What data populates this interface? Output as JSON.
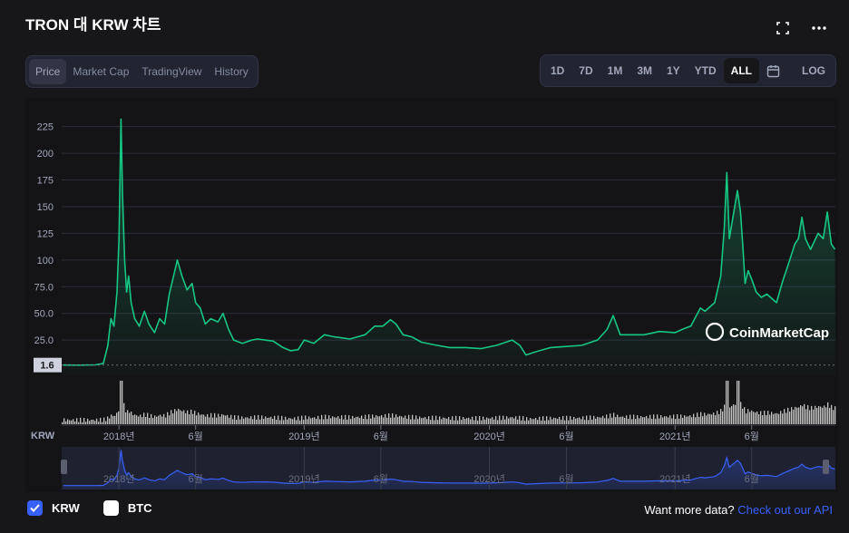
{
  "title": "TRON 대 KRW 차트",
  "icons": {
    "fullscreen": "fullscreen-icon",
    "more": "more-horizontal-icon",
    "calendar": "calendar-icon",
    "check": "check-icon"
  },
  "tabs": [
    {
      "label": "Price",
      "active": true
    },
    {
      "label": "Market Cap",
      "active": false
    },
    {
      "label": "TradingView",
      "active": false
    },
    {
      "label": "History",
      "active": false
    }
  ],
  "ranges": [
    {
      "label": "1D",
      "active": false
    },
    {
      "label": "7D",
      "active": false
    },
    {
      "label": "1M",
      "active": false
    },
    {
      "label": "3M",
      "active": false
    },
    {
      "label": "1Y",
      "active": false
    },
    {
      "label": "YTD",
      "active": false
    },
    {
      "label": "ALL",
      "active": true
    }
  ],
  "log_label": "LOG",
  "watermark": "CoinMarketCap",
  "currency_axis_label": "KRW",
  "legend": [
    {
      "label": "KRW",
      "checked": true
    },
    {
      "label": "BTC",
      "checked": false
    }
  ],
  "more_data": {
    "text": "Want more data? ",
    "link": "Check out our API"
  },
  "colors": {
    "line": "#16c784",
    "nav_line": "#3861fb",
    "background": "#17171a",
    "grid": "#2b2e3b",
    "volume": "#ffffff"
  },
  "chart_data": {
    "type": "area",
    "x_axis": "time",
    "x_range": [
      "2017-09",
      "2021-11"
    ],
    "y_ticks": [
      25.0,
      50.0,
      75.0,
      100,
      125,
      150,
      175,
      200,
      225
    ],
    "ylim": [
      -8,
      240
    ],
    "start_price_marker": "1.6",
    "x_ticks": [
      {
        "date": "2018-01",
        "label": "2018년"
      },
      {
        "date": "2018-06",
        "label": "6월"
      },
      {
        "date": "2019-01",
        "label": "2019년"
      },
      {
        "date": "2019-06",
        "label": "6월"
      },
      {
        "date": "2020-01",
        "label": "2020년"
      },
      {
        "date": "2020-06",
        "label": "6월"
      },
      {
        "date": "2021-01",
        "label": "2021년"
      },
      {
        "date": "2021-06",
        "label": "6월"
      }
    ],
    "points": [
      [
        "2017-09-13",
        1.6
      ],
      [
        "2017-10-15",
        1.5
      ],
      [
        "2017-11-15",
        1.8
      ],
      [
        "2017-12-01",
        3
      ],
      [
        "2017-12-10",
        20
      ],
      [
        "2017-12-16",
        45
      ],
      [
        "2017-12-22",
        38
      ],
      [
        "2017-12-28",
        70
      ],
      [
        "2018-01-01",
        120
      ],
      [
        "2018-01-05",
        232
      ],
      [
        "2018-01-08",
        160
      ],
      [
        "2018-01-12",
        100
      ],
      [
        "2018-01-16",
        70
      ],
      [
        "2018-01-20",
        85
      ],
      [
        "2018-01-25",
        60
      ],
      [
        "2018-02-01",
        45
      ],
      [
        "2018-02-10",
        38
      ],
      [
        "2018-02-20",
        52
      ],
      [
        "2018-03-01",
        40
      ],
      [
        "2018-03-12",
        32
      ],
      [
        "2018-03-22",
        45
      ],
      [
        "2018-04-01",
        40
      ],
      [
        "2018-04-10",
        68
      ],
      [
        "2018-04-20",
        88
      ],
      [
        "2018-04-26",
        100
      ],
      [
        "2018-05-05",
        85
      ],
      [
        "2018-05-15",
        72
      ],
      [
        "2018-05-25",
        78
      ],
      [
        "2018-06-01",
        60
      ],
      [
        "2018-06-10",
        55
      ],
      [
        "2018-06-20",
        40
      ],
      [
        "2018-07-01",
        45
      ],
      [
        "2018-07-15",
        42
      ],
      [
        "2018-07-25",
        50
      ],
      [
        "2018-08-05",
        35
      ],
      [
        "2018-08-15",
        25
      ],
      [
        "2018-09-01",
        22
      ],
      [
        "2018-09-20",
        25
      ],
      [
        "2018-10-01",
        26
      ],
      [
        "2018-11-01",
        24
      ],
      [
        "2018-11-20",
        18
      ],
      [
        "2018-12-05",
        15
      ],
      [
        "2018-12-20",
        16
      ],
      [
        "2019-01-01",
        25
      ],
      [
        "2019-01-20",
        22
      ],
      [
        "2019-02-10",
        30
      ],
      [
        "2019-03-01",
        28
      ],
      [
        "2019-04-01",
        26
      ],
      [
        "2019-05-01",
        30
      ],
      [
        "2019-05-20",
        38
      ],
      [
        "2019-06-05",
        38
      ],
      [
        "2019-06-20",
        44
      ],
      [
        "2019-07-01",
        40
      ],
      [
        "2019-07-15",
        30
      ],
      [
        "2019-08-01",
        28
      ],
      [
        "2019-08-20",
        23
      ],
      [
        "2019-09-20",
        20
      ],
      [
        "2019-10-15",
        18
      ],
      [
        "2019-11-15",
        18
      ],
      [
        "2019-12-15",
        17
      ],
      [
        "2020-01-15",
        20
      ],
      [
        "2020-02-15",
        25
      ],
      [
        "2020-03-01",
        20
      ],
      [
        "2020-03-13",
        11
      ],
      [
        "2020-04-01",
        14
      ],
      [
        "2020-05-01",
        18
      ],
      [
        "2020-06-01",
        19
      ],
      [
        "2020-07-01",
        20
      ],
      [
        "2020-08-01",
        25
      ],
      [
        "2020-08-20",
        35
      ],
      [
        "2020-09-01",
        48
      ],
      [
        "2020-09-15",
        30
      ],
      [
        "2020-10-01",
        30
      ],
      [
        "2020-11-01",
        30
      ],
      [
        "2020-12-01",
        33
      ],
      [
        "2021-01-01",
        32
      ],
      [
        "2021-01-20",
        36
      ],
      [
        "2021-02-01",
        38
      ],
      [
        "2021-02-20",
        55
      ],
      [
        "2021-03-01",
        52
      ],
      [
        "2021-03-20",
        60
      ],
      [
        "2021-04-01",
        85
      ],
      [
        "2021-04-08",
        130
      ],
      [
        "2021-04-13",
        182
      ],
      [
        "2021-04-18",
        120
      ],
      [
        "2021-04-25",
        140
      ],
      [
        "2021-05-04",
        165
      ],
      [
        "2021-05-10",
        145
      ],
      [
        "2021-05-15",
        110
      ],
      [
        "2021-05-19",
        78
      ],
      [
        "2021-05-25",
        90
      ],
      [
        "2021-06-01",
        82
      ],
      [
        "2021-06-10",
        70
      ],
      [
        "2021-06-20",
        65
      ],
      [
        "2021-07-01",
        68
      ],
      [
        "2021-07-20",
        60
      ],
      [
        "2021-08-01",
        80
      ],
      [
        "2021-08-15",
        100
      ],
      [
        "2021-08-25",
        115
      ],
      [
        "2021-09-01",
        120
      ],
      [
        "2021-09-08",
        140
      ],
      [
        "2021-09-15",
        120
      ],
      [
        "2021-09-25",
        110
      ],
      [
        "2021-10-10",
        125
      ],
      [
        "2021-10-20",
        120
      ],
      [
        "2021-10-28",
        145
      ],
      [
        "2021-11-05",
        115
      ],
      [
        "2021-11-12",
        110
      ]
    ]
  }
}
